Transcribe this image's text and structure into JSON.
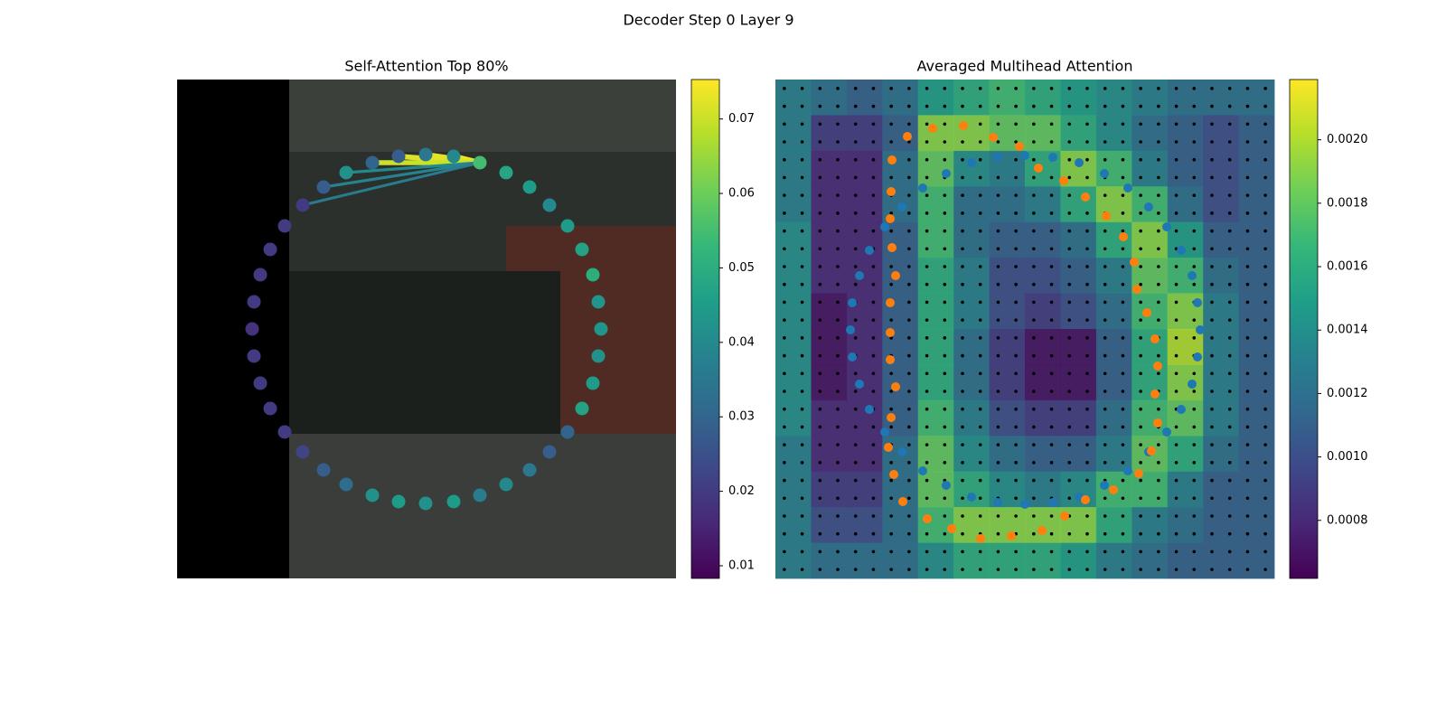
{
  "title": "Decoder Step 0 Layer 9",
  "chart_data": [
    {
      "type": "scatter",
      "title": "Self-Attention Top 80%",
      "colormap": "viridis",
      "xlim": [
        0,
        552
      ],
      "ylim": [
        552,
        0
      ],
      "x": [
        187,
        216,
        245,
        275,
        306,
        335,
        364,
        390,
        412,
        432,
        448,
        460,
        466,
        469,
        466,
        460,
        448,
        432,
        412,
        390,
        364,
        335,
        306,
        275,
        245,
        216,
        187,
        162,
        139,
        119,
        103,
        92,
        85,
        83,
        85,
        92,
        103,
        119,
        139,
        162
      ],
      "y": [
        103,
        92,
        85,
        83,
        85,
        92,
        103,
        119,
        139,
        162,
        188,
        216,
        246,
        276,
        306,
        336,
        364,
        390,
        412,
        432,
        448,
        460,
        467,
        469,
        467,
        460,
        448,
        432,
        412,
        390,
        364,
        336,
        306,
        276,
        246,
        216,
        188,
        162,
        139,
        119
      ],
      "values": [
        0.042,
        0.03,
        0.028,
        0.035,
        0.04,
        0.055,
        0.048,
        0.045,
        0.04,
        0.045,
        0.047,
        0.05,
        0.043,
        0.043,
        0.042,
        0.045,
        0.047,
        0.03,
        0.028,
        0.035,
        0.04,
        0.036,
        0.045,
        0.042,
        0.045,
        0.042,
        0.032,
        0.028,
        0.022,
        0.02,
        0.02,
        0.02,
        0.02,
        0.018,
        0.02,
        0.02,
        0.02,
        0.02,
        0.02,
        0.028
      ],
      "edges": {
        "source": [
          5,
          5,
          5,
          5,
          5,
          5,
          5
        ],
        "target": [
          4,
          3,
          2,
          1,
          0,
          39,
          38
        ],
        "values": [
          0.074,
          0.073,
          0.072,
          0.07,
          0.04,
          0.038,
          0.036
        ]
      },
      "clim": [
        0.0083,
        0.0753
      ],
      "cticks": [
        0.01,
        0.02,
        0.03,
        0.04,
        0.05,
        0.06,
        0.07
      ]
    },
    {
      "type": "heatmap",
      "title": "Averaged Multihead Attention",
      "colormap": "viridis",
      "xlim": [
        0,
        552
      ],
      "ylim": [
        552,
        0
      ],
      "z": [
        [
          0.0013,
          0.0012,
          0.0011,
          0.0012,
          0.0015,
          0.0016,
          0.0017,
          0.0016,
          0.0015,
          0.0014,
          0.0013,
          0.0012,
          0.0012,
          0.0012
        ],
        [
          0.0013,
          0.0009,
          0.0009,
          0.0011,
          0.0019,
          0.0019,
          0.0018,
          0.0018,
          0.0016,
          0.0014,
          0.0012,
          0.0011,
          0.001,
          0.0011
        ],
        [
          0.0013,
          0.0008,
          0.0008,
          0.0012,
          0.0018,
          0.0014,
          0.0013,
          0.0016,
          0.0019,
          0.0017,
          0.0013,
          0.0011,
          0.001,
          0.0011
        ],
        [
          0.0013,
          0.0008,
          0.0008,
          0.0012,
          0.0017,
          0.0012,
          0.0012,
          0.0013,
          0.0016,
          0.0019,
          0.0017,
          0.0012,
          0.001,
          0.0011
        ],
        [
          0.0014,
          0.0008,
          0.0008,
          0.0011,
          0.0017,
          0.0012,
          0.0011,
          0.0011,
          0.0012,
          0.0016,
          0.0019,
          0.0015,
          0.0011,
          0.0011
        ],
        [
          0.0014,
          0.0008,
          0.0008,
          0.0011,
          0.0016,
          0.0013,
          0.001,
          0.001,
          0.0011,
          0.0013,
          0.0018,
          0.0017,
          0.0012,
          0.0011
        ],
        [
          0.0014,
          0.0007,
          0.0008,
          0.0011,
          0.0016,
          0.0013,
          0.001,
          0.0009,
          0.001,
          0.0012,
          0.0017,
          0.0019,
          0.0013,
          0.0011
        ],
        [
          0.0014,
          0.0007,
          0.0008,
          0.0011,
          0.0016,
          0.0012,
          0.0009,
          0.0007,
          0.0007,
          0.0011,
          0.0016,
          0.002,
          0.0013,
          0.0011
        ],
        [
          0.0014,
          0.0007,
          0.0008,
          0.0011,
          0.0016,
          0.0012,
          0.0009,
          0.0007,
          0.0007,
          0.0011,
          0.0016,
          0.0019,
          0.0013,
          0.0011
        ],
        [
          0.0014,
          0.0008,
          0.0008,
          0.0011,
          0.0017,
          0.0013,
          0.001,
          0.0009,
          0.0009,
          0.0012,
          0.0017,
          0.0018,
          0.0013,
          0.0011
        ],
        [
          0.0013,
          0.0008,
          0.0008,
          0.0012,
          0.0018,
          0.0014,
          0.0012,
          0.0011,
          0.0011,
          0.0013,
          0.0018,
          0.0016,
          0.0012,
          0.0011
        ],
        [
          0.0013,
          0.0009,
          0.0009,
          0.0012,
          0.0018,
          0.0016,
          0.0014,
          0.0013,
          0.0014,
          0.0017,
          0.0017,
          0.0013,
          0.0011,
          0.0011
        ],
        [
          0.0013,
          0.001,
          0.001,
          0.0012,
          0.0017,
          0.0019,
          0.0019,
          0.0019,
          0.0019,
          0.0016,
          0.0013,
          0.0012,
          0.0011,
          0.0011
        ],
        [
          0.0013,
          0.0012,
          0.0012,
          0.0012,
          0.0014,
          0.0016,
          0.0016,
          0.0016,
          0.0015,
          0.0013,
          0.0012,
          0.0011,
          0.0011,
          0.0011
        ]
      ],
      "series": [
        {
          "color": "#1f77b4",
          "x": [
            189,
            217,
            246,
            276,
            307,
            336,
            364,
            390,
            413,
            433,
            449,
            461,
            467,
            470,
            467,
            461,
            449,
            433,
            413,
            390,
            364,
            336,
            307,
            276,
            246,
            217,
            189,
            163,
            140,
            121,
            104,
            93,
            85,
            83,
            85,
            93,
            104,
            121,
            140,
            163
          ],
          "y": [
            104,
            92,
            86,
            84,
            86,
            92,
            104,
            120,
            141,
            163,
            189,
            217,
            247,
            277,
            307,
            337,
            365,
            390,
            412,
            433,
            449,
            462,
            468,
            470,
            468,
            462,
            449,
            433,
            412,
            390,
            365,
            337,
            307,
            277,
            247,
            217,
            189,
            163,
            141,
            120
          ]
        },
        {
          "color": "#ff7f0e",
          "x": [
            146,
            174,
            208,
            241,
            270,
            291,
            319,
            343,
            366,
            385,
            397,
            400,
            411,
            420,
            423,
            420,
            423,
            416,
            402,
            374,
            343,
            320,
            295,
            261,
            227,
            195,
            168,
            141,
            131,
            125,
            128,
            133,
            127,
            127,
            127,
            133,
            129,
            127,
            128,
            129
          ],
          "y": [
            63,
            54,
            51,
            64,
            74,
            98,
            112,
            130,
            151,
            174,
            202,
            232,
            258,
            287,
            317,
            348,
            380,
            411,
            436,
            454,
            465,
            483,
            499,
            505,
            508,
            497,
            486,
            467,
            437,
            407,
            374,
            340,
            310,
            280,
            247,
            217,
            186,
            154,
            124,
            89
          ]
        }
      ],
      "clim": [
        0.000617,
        0.00219
      ],
      "cticks": [
        0.0008,
        {
          "value": 0.001,
          "label": "0.0010"
        },
        0.0012,
        0.0014,
        0.0016,
        0.0018,
        {
          "value": 0.002,
          "label": "0.0020"
        }
      ]
    }
  ]
}
